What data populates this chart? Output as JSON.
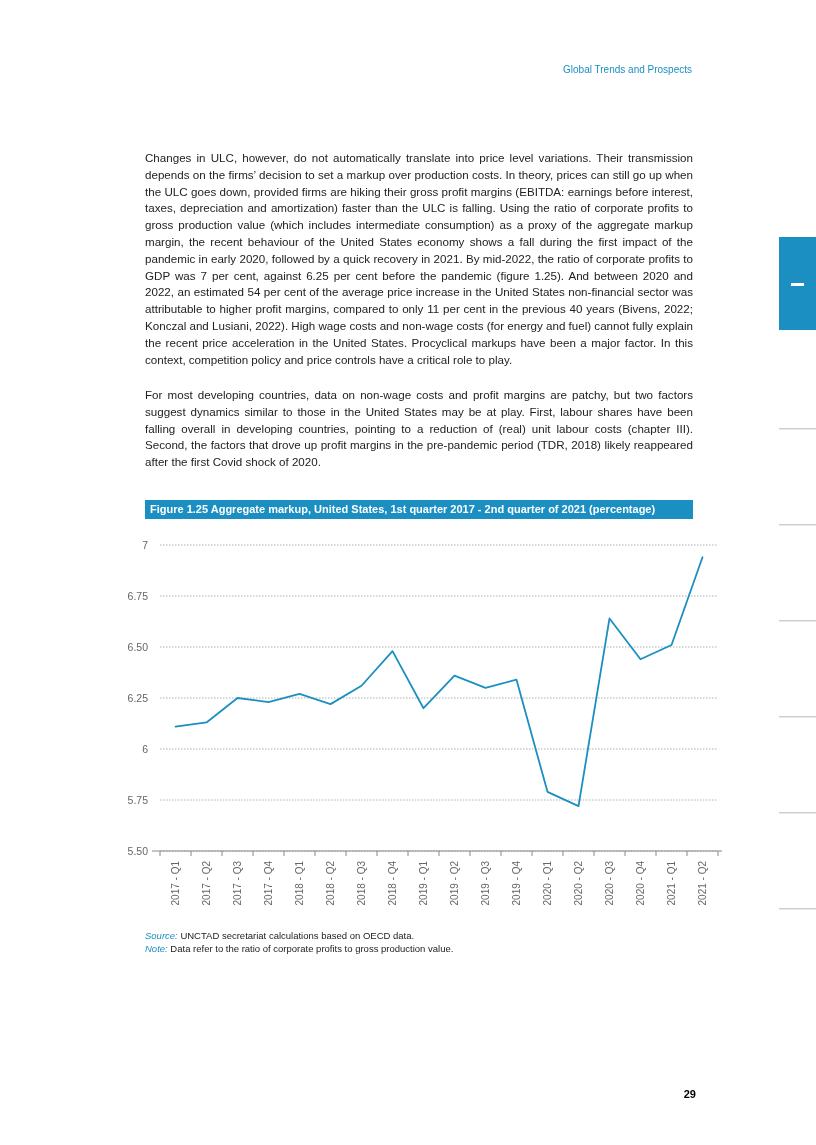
{
  "chart_data": {
    "type": "line",
    "title": "Figure 1.25 Aggregate markup, United States, 1st quarter 2017 - 2nd quarter of 2021 (percentage)",
    "categories": [
      "2017 - Q1",
      "2017 - Q2",
      "2017 - Q3",
      "2017 - Q4",
      "2018 - Q1",
      "2018 - Q2",
      "2018 - Q3",
      "2018 - Q4",
      "2019 - Q1",
      "2019 - Q2",
      "2019 - Q3",
      "2019 - Q4",
      "2020 - Q1",
      "2020 - Q2",
      "2020 - Q3",
      "2020 - Q4",
      "2021 - Q1",
      "2021 - Q2"
    ],
    "values": [
      6.11,
      6.13,
      6.25,
      6.23,
      6.27,
      6.22,
      6.31,
      6.48,
      6.2,
      6.36,
      6.3,
      6.34,
      5.79,
      5.72,
      6.64,
      6.44,
      6.51,
      6.94
    ],
    "color": "#1b8fc2",
    "ylim": [
      5.5,
      7
    ],
    "yticks": [
      {
        "value": 5.5,
        "label": "5.50"
      },
      5.75,
      6,
      6.25,
      {
        "value": 6.5,
        "label": "6.50"
      },
      6.75,
      7
    ],
    "grid": "y",
    "annotations": [
      "Global Trends and Prospects",
      "Changes in ULC, however, do not automatically translate into price level variations. Their transmission depends on the firms’ decision to set a markup over production costs. In theory, prices can still go up when the ULC goes down, provided firms are hiking their gross profit margins (EBITDA: earnings before interest, taxes, depreciation and amortization) faster than the ULC is falling. Using the ratio of corporate profits to gross production value (which includes intermediate consumption) as a proxy of the aggregate markup margin, the recent behaviour of the United States economy shows a fall during the first impact of the pandemic in early 2020, followed by a quick recovery in 2021. By mid-2022, the ratio of corporate profits to GDP was 7 per cent, against 6.25 per cent before the pandemic (figure 1.25). And between 2020 and 2022, an estimated 54 per cent of the average price increase in the United States non-financial sector was attributable to higher profit margins, compared to only 11 per cent in the previous 40 years (Bivens, 2022; Konczal and Lusiani, 2022). High wage costs and non-wage costs (for energy and fuel) cannot fully explain the recent price acceleration in the United States. Procyclical markups have been a major factor. In this context, competition policy and price controls have a critical role to play.",
      "For most developing countries, data on non-wage costs and profit margins are patchy, but two factors suggest dynamics similar to those in the United States may be at play. First, labour shares have been falling overall in developing countries, pointing to a reduction of (real) unit labour costs (chapter III). Second, the factors that drove up profit margins in the pre-pandemic period (TDR, 2018) likely reappeared after the first Covid shock of 2020.",
      "Source: UNCTAD secretariat calculations based on OECD data.",
      "Note: Data refer to the ratio of corporate profits to gross production value.",
      "29"
    ]
  }
}
